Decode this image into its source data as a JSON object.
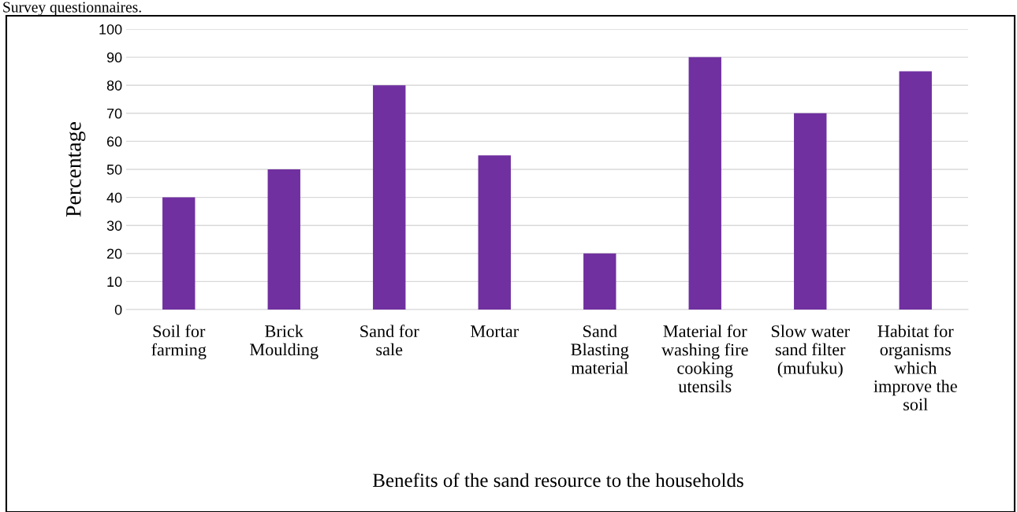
{
  "chart_data": {
    "type": "bar",
    "categories": [
      "Soil for farming",
      "Brick Moulding",
      "Sand for sale",
      "Mortar",
      "Sand Blasting material",
      "Material for washing fire cooking utensils",
      "Slow water sand filter (mufuku)",
      "Habitat for organisms which improve the soil"
    ],
    "values": [
      40,
      50,
      80,
      55,
      20,
      90,
      70,
      85
    ],
    "color": "#7030a0",
    "xlabel": "Benefits of the sand resource to the households",
    "ylabel": "Percentage",
    "ylim": [
      0,
      100
    ],
    "yticks": [
      0,
      10,
      20,
      30,
      40,
      50,
      60,
      70,
      80,
      90,
      100
    ],
    "grid": "y",
    "annotations": [
      "Survey questionnaires."
    ]
  }
}
